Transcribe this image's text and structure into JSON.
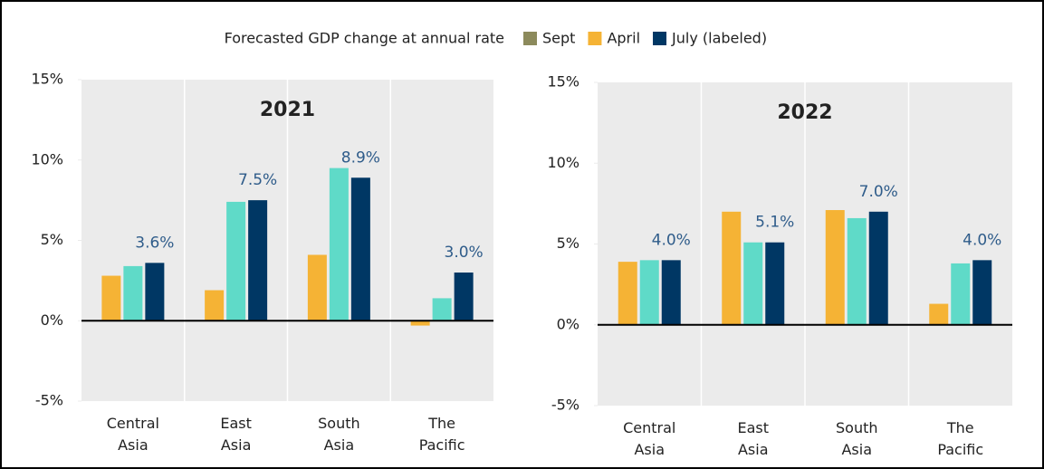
{
  "legend": {
    "title": "Forecasted GDP change at annual rate",
    "order": [
      1,
      0,
      2
    ]
  },
  "chart_data": [
    {
      "type": "bar",
      "title": "2021",
      "categories": [
        "Central Asia",
        "East Asia",
        "South Asia",
        "The Pacific"
      ],
      "series": [
        {
          "name": "April",
          "color": "#f5b335",
          "values": [
            2.8,
            1.9,
            4.1,
            -0.3
          ]
        },
        {
          "name": "Sept",
          "color": "#5fdac8",
          "legend_color": "#8c8a5c",
          "values": [
            3.4,
            7.4,
            9.5,
            1.4
          ]
        },
        {
          "name": "July (labeled)",
          "color": "#003764",
          "values": [
            3.6,
            7.5,
            8.9,
            3.0
          ],
          "value_labels": [
            "3.6%",
            "7.5%",
            "8.9%",
            "3.0%"
          ]
        }
      ],
      "ylim": [
        -5,
        15
      ],
      "yticks": [
        {
          "value": -5,
          "label": "-5%"
        },
        {
          "value": 0,
          "label": "0%"
        },
        {
          "value": 5,
          "label": "5%"
        },
        {
          "value": 10,
          "label": "10%"
        },
        {
          "value": 15,
          "label": "15%"
        }
      ]
    },
    {
      "type": "bar",
      "title": "2022",
      "categories": [
        "Central Asia",
        "East Asia",
        "South Asia",
        "The Pacific"
      ],
      "series": [
        {
          "name": "April",
          "color": "#f5b335",
          "values": [
            3.9,
            7.0,
            7.1,
            1.3
          ]
        },
        {
          "name": "Sept",
          "color": "#5fdac8",
          "legend_color": "#8c8a5c",
          "values": [
            4.0,
            5.1,
            6.6,
            3.8
          ]
        },
        {
          "name": "July (labeled)",
          "color": "#003764",
          "values": [
            4.0,
            5.1,
            7.0,
            4.0
          ],
          "value_labels": [
            "4.0%",
            "5.1%",
            "7.0%",
            "4.0%"
          ]
        }
      ],
      "ylim": [
        -5,
        15
      ],
      "yticks": [
        {
          "value": -5,
          "label": "-5%"
        },
        {
          "value": 0,
          "label": "0%"
        },
        {
          "value": 5,
          "label": "5%"
        },
        {
          "value": 10,
          "label": "10%"
        },
        {
          "value": 15,
          "label": "15%"
        }
      ]
    }
  ]
}
